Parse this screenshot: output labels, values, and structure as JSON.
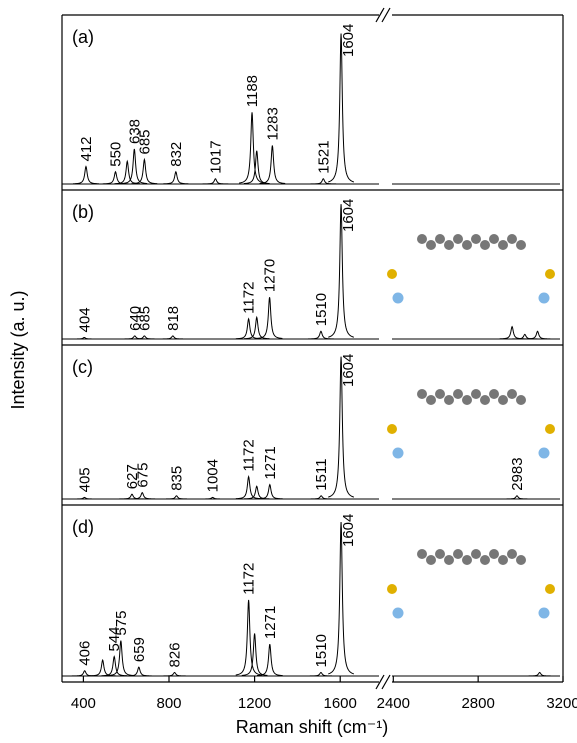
{
  "chart_data": {
    "type": "line",
    "xlabel": "Raman shift (cm⁻¹)",
    "ylabel": "Intensity (a. u.)",
    "xlim": [
      300,
      1800
    ],
    "xticks": [
      400,
      800,
      1200,
      1600
    ],
    "xlim_right": [
      2375,
      3200
    ],
    "xticks_right": [
      2400,
      2800,
      3200
    ],
    "color": "#000000",
    "panels": [
      {
        "label": "(a)",
        "peaks": {
          "x": [
            412,
            550,
            638,
            685,
            832,
            1017,
            1188,
            1283,
            1521,
            1604
          ],
          "heights": [
            10,
            7,
            20,
            14,
            7,
            3,
            41,
            22,
            3,
            86
          ]
        },
        "other_peaks": {
          "x": [
            605,
            1210
          ],
          "heights": [
            13,
            19
          ]
        }
      },
      {
        "label": "(b)",
        "peaks": {
          "x": [
            404,
            640,
            685,
            818,
            1172,
            1270,
            1510,
            1604
          ],
          "heights": [
            1,
            2,
            2,
            2,
            13,
            27,
            5,
            87
          ]
        },
        "other_peaks": {
          "x": [
            1210,
            2960,
            3020,
            3080
          ],
          "heights": [
            14,
            8,
            3,
            5
          ]
        }
      },
      {
        "label": "(c)",
        "peaks": {
          "x": [
            405,
            627,
            675,
            835,
            1004,
            1172,
            1271,
            1511,
            1604,
            2983
          ],
          "heights": [
            1,
            3,
            4,
            2,
            1,
            14,
            9,
            2,
            89,
            2
          ]
        },
        "other_peaks": {
          "x": [
            1210
          ],
          "heights": [
            8
          ]
        }
      },
      {
        "label": "(d)",
        "peaks": {
          "x": [
            406,
            544,
            575,
            659,
            826,
            1172,
            1271,
            1510,
            1604
          ],
          "heights": [
            3,
            11,
            20,
            5,
            2,
            43,
            18,
            2,
            87
          ]
        },
        "other_peaks": {
          "x": [
            490,
            1200,
            3090
          ],
          "heights": [
            9,
            24,
            2
          ]
        }
      }
    ]
  }
}
